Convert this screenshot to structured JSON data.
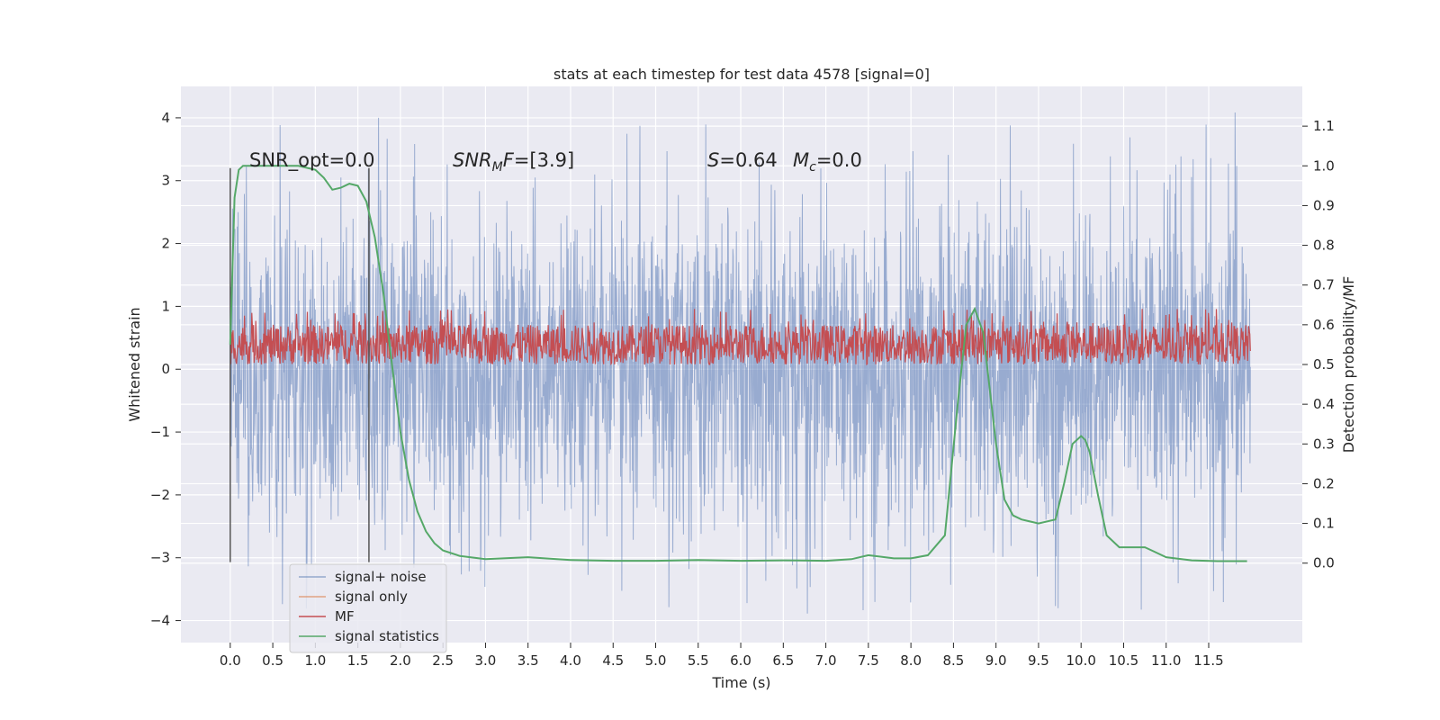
{
  "chart_data": {
    "type": "line",
    "title": "stats at each timestep for test data 4578 [signal=0]",
    "xlabel": "Time (s)",
    "ylabel": "Whitened strain",
    "ylabel_right": "Detection probability/MF",
    "xlim": [
      -0.58,
      12.6
    ],
    "ylim": [
      -4.35,
      4.5
    ],
    "ylim_right": [
      -0.2,
      1.2
    ],
    "x_ticks": [
      0.0,
      0.5,
      1.0,
      1.5,
      2.0,
      2.5,
      3.0,
      3.5,
      4.0,
      4.5,
      5.0,
      5.5,
      6.0,
      6.5,
      7.0,
      7.5,
      8.0,
      8.5,
      9.0,
      9.5,
      10.0,
      10.5,
      11.0,
      11.5
    ],
    "x_tick_labels": [
      "0.0",
      "0.5",
      "1.0",
      "1.5",
      "2.0",
      "2.5",
      "3.0",
      "3.5",
      "4.0",
      "4.5",
      "5.0",
      "5.5",
      "6.0",
      "6.5",
      "7.0",
      "7.5",
      "8.0",
      "8.5",
      "9.0",
      "9.5",
      "10.0",
      "10.5",
      "11.0",
      "11.5"
    ],
    "y_ticks": [
      -4,
      -3,
      -2,
      -1,
      0,
      1,
      2,
      3,
      4
    ],
    "y_tick_labels": [
      "−4",
      "−3",
      "−2",
      "−1",
      "0",
      "1",
      "2",
      "3",
      "4"
    ],
    "y_ticks_right": [
      0.0,
      0.1,
      0.2,
      0.3,
      0.4,
      0.5,
      0.6,
      0.7,
      0.8,
      0.9,
      1.0,
      1.1
    ],
    "y_tick_labels_right": [
      "0.0",
      "0.1",
      "0.2",
      "0.3",
      "0.4",
      "0.5",
      "0.6",
      "0.7",
      "0.8",
      "0.9",
      "1.0",
      "1.1"
    ],
    "grid": true,
    "legend_position": "bottom-left",
    "annotations": {
      "snr_opt": "SNR_opt=0.0",
      "snr_mf_base": "SNR",
      "snr_mf_sub": "M",
      "snr_mf_var": "F",
      "snr_mf_value": "=[3.9]",
      "s_var": "S",
      "s_value": "=0.64",
      "mc_var": "M",
      "mc_sub": "c",
      "mc_value": "=0.0"
    },
    "vertical_lines": [
      0.0,
      1.63
    ],
    "series": [
      {
        "name": "signal+ noise",
        "color": "#4c72b0",
        "axis": "left",
        "x_range": [
          0.0,
          11.99
        ],
        "envelope_typical": [
          -2.0,
          2.0
        ],
        "envelope_extreme": [
          -3.9,
          4.1
        ]
      },
      {
        "name": "signal only",
        "color": "#dd8452",
        "axis": "left",
        "x": [],
        "y": []
      },
      {
        "name": "MF",
        "color": "#c44e52",
        "axis": "right",
        "x_range": [
          0.0,
          11.99
        ],
        "band": [
          0.5,
          0.6
        ],
        "peak_max": 0.64
      },
      {
        "name": "signal statistics",
        "color": "#55a868",
        "axis": "right",
        "x": [
          0.0,
          0.05,
          0.1,
          0.15,
          0.2,
          0.3,
          0.5,
          0.8,
          1.0,
          1.1,
          1.2,
          1.3,
          1.4,
          1.5,
          1.6,
          1.7,
          1.8,
          1.9,
          2.0,
          2.1,
          2.2,
          2.3,
          2.4,
          2.5,
          2.7,
          3.0,
          3.5,
          4.0,
          4.5,
          5.0,
          5.5,
          6.0,
          6.5,
          7.0,
          7.3,
          7.5,
          7.8,
          8.0,
          8.2,
          8.4,
          8.55,
          8.65,
          8.75,
          8.85,
          9.0,
          9.1,
          9.2,
          9.3,
          9.5,
          9.7,
          9.8,
          9.9,
          10.0,
          10.05,
          10.1,
          10.2,
          10.3,
          10.45,
          10.6,
          10.75,
          10.85,
          11.0,
          11.3,
          11.6,
          11.95
        ],
        "y": [
          0.55,
          0.92,
          0.99,
          1.0,
          1.0,
          1.0,
          1.0,
          1.0,
          0.99,
          0.97,
          0.94,
          0.945,
          0.955,
          0.95,
          0.91,
          0.82,
          0.68,
          0.5,
          0.33,
          0.21,
          0.13,
          0.08,
          0.05,
          0.032,
          0.018,
          0.01,
          0.015,
          0.008,
          0.006,
          0.006,
          0.008,
          0.006,
          0.007,
          0.006,
          0.01,
          0.02,
          0.012,
          0.012,
          0.02,
          0.07,
          0.4,
          0.6,
          0.64,
          0.58,
          0.3,
          0.16,
          0.12,
          0.11,
          0.1,
          0.11,
          0.2,
          0.3,
          0.32,
          0.31,
          0.28,
          0.17,
          0.07,
          0.04,
          0.04,
          0.04,
          0.03,
          0.015,
          0.007,
          0.005,
          0.005
        ]
      }
    ]
  }
}
